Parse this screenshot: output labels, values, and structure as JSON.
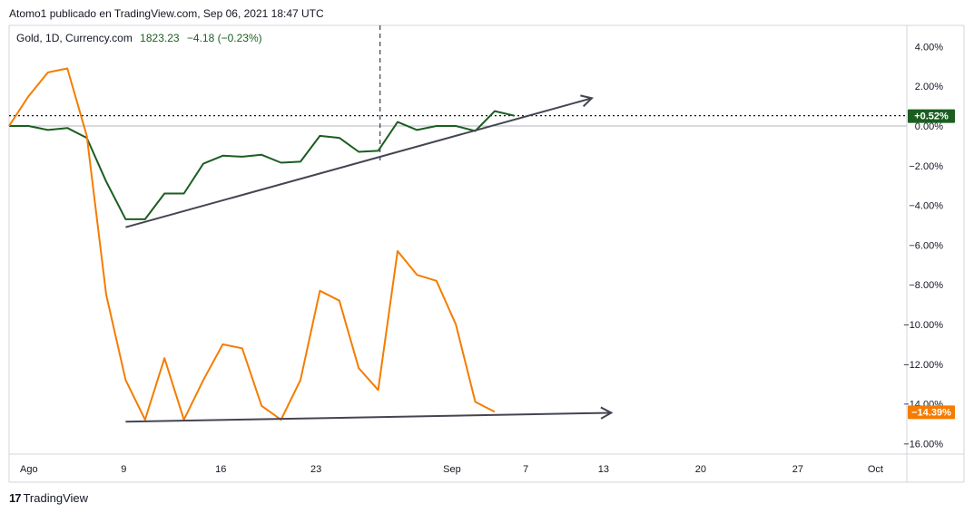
{
  "header": {
    "publisher_text": "Atomo1 publicado en TradingView.com, Sep 06, 2021 18:47 UTC"
  },
  "legend": {
    "symbol_text": "Gold, 1D, Currency.com",
    "price": "1823.23",
    "change": "−4.18 (−0.23%)"
  },
  "footer": {
    "brand_label": "TradingView",
    "logo_glyph": "17"
  },
  "colors": {
    "gold_series": "#1b5e20",
    "orange_series": "#f57c00",
    "trendline": "#434651",
    "grid_border": "#d1d4dc"
  },
  "chart_data": {
    "type": "line",
    "y_unit": "percent change",
    "ylim": [
      -16.9,
      5.0
    ],
    "y_ticks": [
      "4.00%",
      "2.00%",
      "0.00%",
      "−2.00%",
      "−4.00%",
      "−6.00%",
      "−8.00%",
      "−10.00%",
      "−12.00%",
      "−14.00%",
      "−16.00%"
    ],
    "y_tick_values": [
      4,
      2,
      0,
      -2,
      -4,
      -6,
      -8,
      -10,
      -12,
      -14,
      -16
    ],
    "x_ticks": [
      {
        "label": "Ago",
        "t": 0.2
      },
      {
        "label": "9",
        "t": 5.9
      },
      {
        "label": "16",
        "t": 10.9
      },
      {
        "label": "23",
        "t": 15.8
      },
      {
        "label": "Sep",
        "t": 22.8
      },
      {
        "label": "7",
        "t": 26.6
      },
      {
        "label": "13",
        "t": 30.6
      },
      {
        "label": "20",
        "t": 35.6
      },
      {
        "label": "27",
        "t": 40.6
      },
      {
        "label": "Oct",
        "t": 44.6
      }
    ],
    "grid": false,
    "legend_position": "top-left",
    "series": [
      {
        "values": [
          [
            0,
            0
          ],
          [
            1,
            0
          ],
          [
            2,
            -0.2
          ],
          [
            3,
            -0.1
          ],
          [
            4,
            -0.6
          ],
          [
            5,
            -2.8
          ],
          [
            6,
            -4.7
          ],
          [
            7,
            -4.7
          ],
          [
            8,
            -3.4
          ],
          [
            9,
            -3.4
          ],
          [
            10,
            -1.9
          ],
          [
            11,
            -1.5
          ],
          [
            12,
            -1.55
          ],
          [
            13,
            -1.45
          ],
          [
            14,
            -1.85
          ],
          [
            15,
            -1.8
          ],
          [
            16,
            -0.5
          ],
          [
            17,
            -0.6
          ],
          [
            18,
            -1.3
          ],
          [
            19,
            -1.25
          ],
          [
            20,
            0.2
          ],
          [
            21,
            -0.2
          ],
          [
            22,
            0.0
          ],
          [
            23,
            0.0
          ],
          [
            24,
            -0.25
          ],
          [
            25,
            0.75
          ],
          [
            26,
            0.52
          ]
        ],
        "last_label": "+0.52%"
      },
      {
        "values": [
          [
            0,
            0
          ],
          [
            1,
            1.5
          ],
          [
            2,
            2.7
          ],
          [
            3,
            2.9
          ],
          [
            4,
            -0.5
          ],
          [
            5,
            -8.5
          ],
          [
            6,
            -12.8
          ],
          [
            7,
            -14.8
          ],
          [
            8,
            -11.7
          ],
          [
            9,
            -14.8
          ],
          [
            10,
            -12.8
          ],
          [
            11,
            -11.0
          ],
          [
            12,
            -11.2
          ],
          [
            13,
            -14.1
          ],
          [
            14,
            -14.8
          ],
          [
            15,
            -12.8
          ],
          [
            16,
            -8.3
          ],
          [
            17,
            -8.8
          ],
          [
            18,
            -12.2
          ],
          [
            19,
            -13.3
          ],
          [
            20,
            -6.3
          ],
          [
            21,
            -7.5
          ],
          [
            22,
            -7.8
          ],
          [
            23,
            -10.0
          ],
          [
            24,
            -13.9
          ],
          [
            25,
            -14.4
          ]
        ],
        "last_label": "−14.39%"
      }
    ],
    "reference_lines": {
      "zero_line": 0,
      "current_value_dotted": 0.52,
      "crosshair_t": 19.1
    },
    "trendlines": [
      {
        "from": [
          6,
          -5.1
        ],
        "to": [
          30,
          1.4
        ],
        "arrow": true
      },
      {
        "from": [
          6,
          -14.9
        ],
        "to": [
          31,
          -14.45
        ],
        "arrow": true
      }
    ]
  }
}
